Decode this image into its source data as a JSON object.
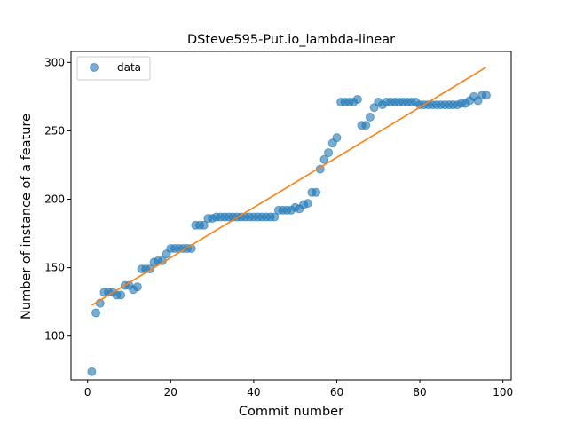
{
  "chart_data": {
    "type": "scatter",
    "title": "DSteve595-Put.io_lambda-linear",
    "xlabel": "Commit number",
    "ylabel": "Number of instance of a feature",
    "xlim": [
      -4,
      102
    ],
    "ylim": [
      68,
      308
    ],
    "xticks": [
      0,
      20,
      40,
      60,
      80,
      100
    ],
    "yticks": [
      100,
      150,
      200,
      250,
      300
    ],
    "grid": false,
    "legend_position": "top-left",
    "colors": {
      "data": "#1f77b4",
      "fit": "#ff7f0e"
    },
    "series": [
      {
        "name": "data",
        "kind": "scatter",
        "x": [
          1,
          2,
          3,
          4,
          5,
          6,
          7,
          8,
          9,
          10,
          11,
          12,
          13,
          14,
          15,
          16,
          17,
          18,
          19,
          20,
          21,
          22,
          23,
          24,
          25,
          26,
          27,
          28,
          29,
          30,
          31,
          32,
          33,
          34,
          35,
          36,
          37,
          38,
          39,
          40,
          41,
          42,
          43,
          44,
          45,
          46,
          47,
          48,
          49,
          50,
          51,
          52,
          53,
          54,
          55,
          56,
          57,
          58,
          59,
          60,
          61,
          62,
          63,
          64,
          65,
          66,
          67,
          68,
          69,
          70,
          71,
          72,
          73,
          74,
          75,
          76,
          77,
          78,
          79,
          80,
          81,
          82,
          83,
          84,
          85,
          86,
          87,
          88,
          89,
          90,
          91,
          92,
          93,
          94,
          95,
          96
        ],
        "y": [
          74,
          117,
          124,
          132,
          132,
          132,
          130,
          130,
          137,
          137,
          134,
          136,
          149,
          149,
          149,
          154,
          155,
          155,
          160,
          164,
          164,
          164,
          164,
          164,
          164,
          181,
          181,
          181,
          186,
          186,
          187,
          187,
          187,
          187,
          187,
          187,
          187,
          187,
          187,
          187,
          187,
          187,
          187,
          187,
          187,
          192,
          192,
          192,
          192,
          194,
          193,
          196,
          197,
          205,
          205,
          222,
          229,
          234,
          241,
          245,
          271,
          271,
          271,
          271,
          273,
          254,
          254,
          260,
          267,
          271,
          269,
          271,
          271,
          271,
          271,
          271,
          271,
          271,
          271,
          269,
          269,
          269,
          269,
          269,
          269,
          269,
          269,
          269,
          269,
          270,
          270,
          272,
          275,
          272,
          276,
          276
        ]
      },
      {
        "name": "",
        "kind": "line",
        "x": [
          1,
          96
        ],
        "y": [
          122.5,
          296.5
        ]
      }
    ]
  }
}
